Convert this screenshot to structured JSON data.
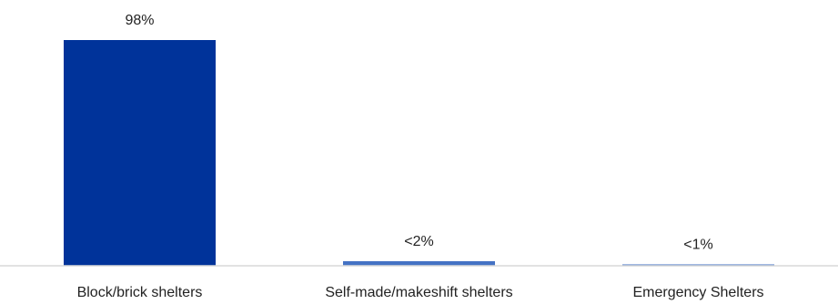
{
  "chart_data": {
    "type": "bar",
    "categories": [
      "Block/brick shelters",
      "Self-made/makeshift shelters",
      "Emergency Shelters"
    ],
    "values": [
      98,
      2,
      0.3
    ],
    "data_labels": [
      "98%",
      "<2%",
      "<1%"
    ],
    "colors": [
      "#00339a",
      "#4472c4",
      "#4472c4"
    ],
    "axis_color": "#d9d9d9",
    "ylim": [
      0,
      98
    ],
    "grid": false,
    "title": "",
    "xlabel": "",
    "ylabel": ""
  }
}
